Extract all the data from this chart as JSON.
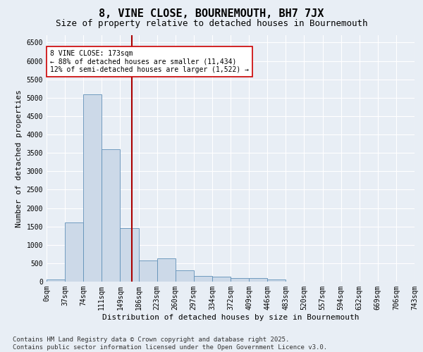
{
  "title": "8, VINE CLOSE, BOURNEMOUTH, BH7 7JX",
  "subtitle": "Size of property relative to detached houses in Bournemouth",
  "xlabel": "Distribution of detached houses by size in Bournemouth",
  "ylabel": "Number of detached properties",
  "bar_color": "#ccd9e8",
  "bar_edge_color": "#6090b8",
  "background_color": "#e8eef5",
  "bin_labels": [
    "0sqm",
    "37sqm",
    "74sqm",
    "111sqm",
    "149sqm",
    "186sqm",
    "223sqm",
    "260sqm",
    "297sqm",
    "334sqm",
    "372sqm",
    "409sqm",
    "446sqm",
    "483sqm",
    "520sqm",
    "557sqm",
    "594sqm",
    "632sqm",
    "669sqm",
    "706sqm",
    "743sqm"
  ],
  "bar_values": [
    50,
    1600,
    5100,
    3600,
    1450,
    580,
    640,
    300,
    150,
    130,
    90,
    100,
    50,
    0,
    0,
    0,
    0,
    0,
    0,
    0
  ],
  "ylim": [
    0,
    6700
  ],
  "yticks": [
    0,
    500,
    1000,
    1500,
    2000,
    2500,
    3000,
    3500,
    4000,
    4500,
    5000,
    5500,
    6000,
    6500
  ],
  "vline_color": "#aa0000",
  "annotation_text": "8 VINE CLOSE: 173sqm\n← 88% of detached houses are smaller (11,434)\n12% of semi-detached houses are larger (1,522) →",
  "annotation_box_color": "#ffffff",
  "annotation_box_edge": "#cc0000",
  "footer_line1": "Contains HM Land Registry data © Crown copyright and database right 2025.",
  "footer_line2": "Contains public sector information licensed under the Open Government Licence v3.0.",
  "grid_color": "#ffffff",
  "title_fontsize": 11,
  "subtitle_fontsize": 9,
  "axis_fontsize": 8,
  "tick_fontsize": 7,
  "footer_fontsize": 6.5
}
